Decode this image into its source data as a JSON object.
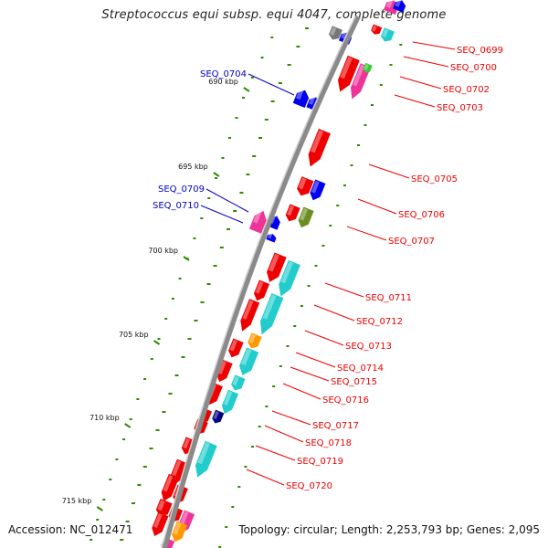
{
  "title": "Streptococcus equi subsp. equi 4047, complete genome",
  "footer": {
    "accession": "Accession: NC_012471",
    "summary": "Topology: circular; Length: 2,253,793 bp; Genes: 2,095"
  },
  "colors": {
    "forward_label": "#0000cc",
    "reverse_label": "#ee0000",
    "backbone": "#8a8a8a",
    "tick": "#2e8b00",
    "cds_red": "#ee0000",
    "cds_blue": "#0000ee",
    "cds_cyan": "#22cccc",
    "cds_pink": "#ee3399",
    "cds_orange": "#ff9900",
    "cds_olive": "#6b8e23",
    "cds_grey": "#777777",
    "cds_green": "#33cc33",
    "cds_navy": "#000080"
  },
  "scale_labels": [
    "690 kbp",
    "695 kbp",
    "700 kbp",
    "705 kbp",
    "710 kbp",
    "715 kbp"
  ],
  "forward_labels": [
    "SEQ_0704",
    "SEQ_0709",
    "SEQ_0710"
  ],
  "reverse_labels": [
    "SEQ_0699",
    "SEQ_0700",
    "SEQ_0702",
    "SEQ_0703",
    "SEQ_0705",
    "SEQ_0706",
    "SEQ_0707",
    "SEQ_0711",
    "SEQ_0712",
    "SEQ_0713",
    "SEQ_0714",
    "SEQ_0715",
    "SEQ_0716",
    "SEQ_0717",
    "SEQ_0718",
    "SEQ_0719",
    "SEQ_0720"
  ]
}
